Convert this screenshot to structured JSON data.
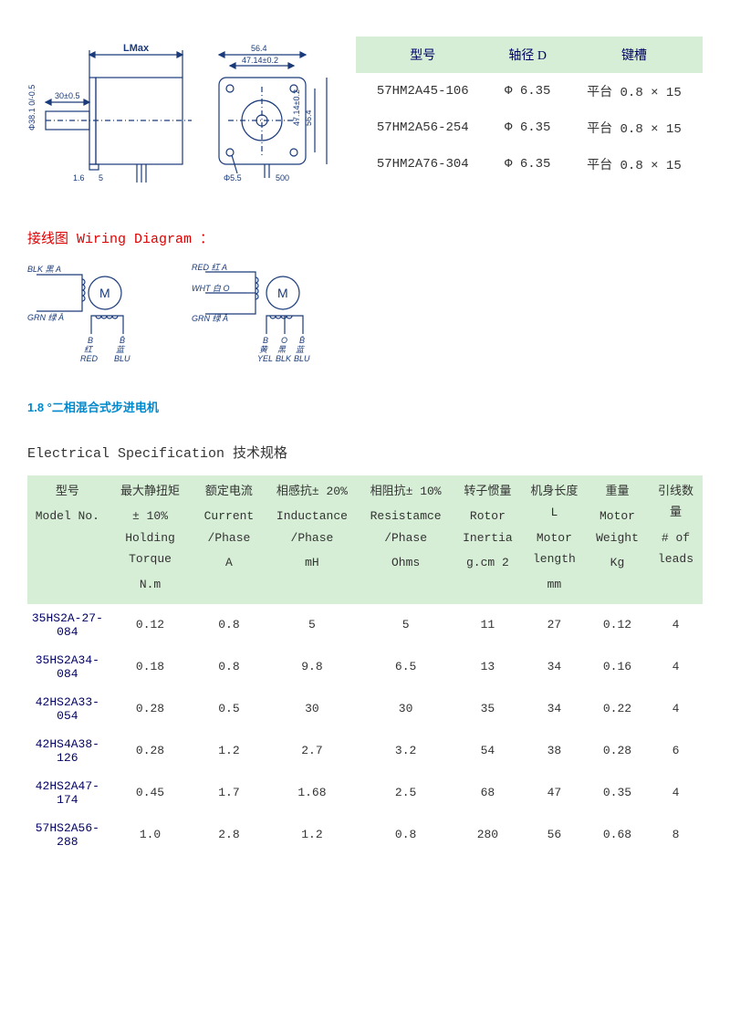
{
  "drawing": {
    "dims": {
      "lmax": "LMax",
      "shaft_len": "30±0.5",
      "shaft_dia": "Φ38.1 0/-0.5",
      "flange_thk": "5",
      "base": "1.6",
      "face_w": "56.4",
      "bolt_w": "47.14±0.2",
      "bolt_h": "47.14±0.2",
      "face_h": "56.4",
      "hole": "Φ5.5",
      "lead": "500"
    }
  },
  "small_table": {
    "headers": [
      "型号",
      "轴径 D",
      "键槽"
    ],
    "rows": [
      [
        "57HM2A45-106",
        "Φ 6.35",
        "平台 0.8 × 15"
      ],
      [
        "57HM2A56-254",
        "Φ 6.35",
        "平台 0.8 × 15"
      ],
      [
        "57HM2A76-304",
        "Φ 6.35",
        "平台 0.8 × 15"
      ]
    ]
  },
  "labels": {
    "wiring_title": "接线图 Wiring Diagram ：",
    "subtitle": "1.8 °二相混合式步进电机",
    "spec_title": "Electrical Specification 技术规格"
  },
  "wiring": {
    "left": {
      "a": "BLK 黑 A",
      "abar": "GRN 绿 Ā",
      "b": "B\n红\nRED",
      "bbar": "B̄\n蓝\nBLU"
    },
    "right": {
      "a": "RED 红 A",
      "o": "WHT 白 O",
      "abar": "GRN 绿 Ā",
      "b": "B\n黄\nYEL",
      "ob": "O\n黑\nBLK",
      "bbar": "B̄\n蓝\nBLU"
    }
  },
  "spec_table": {
    "headers": [
      {
        "cn": "型号",
        "en": "Model No.",
        "unit": ""
      },
      {
        "cn": "最大静扭矩",
        "en": "± 10% Holding Torque",
        "unit": "N.m"
      },
      {
        "cn": "额定电流",
        "en": "Current /Phase",
        "unit": "A"
      },
      {
        "cn": "相感抗± 20%",
        "en": "Inductance /Phase",
        "unit": "mH"
      },
      {
        "cn": "相阻抗± 10%",
        "en": "Resistamce /Phase",
        "unit": "Ohms"
      },
      {
        "cn": "转子惯量",
        "en": "Rotor Inertia",
        "unit": "g.cm 2"
      },
      {
        "cn": "机身长度 L",
        "en": "Motor length",
        "unit": "mm"
      },
      {
        "cn": "重量",
        "en": "Motor Weight",
        "unit": "Kg"
      },
      {
        "cn": "引线数量",
        "en": "# of leads",
        "unit": ""
      }
    ],
    "rows": [
      [
        "35HS2A-27-084",
        "0.12",
        "0.8",
        "5",
        "5",
        "11",
        "27",
        "0.12",
        "4"
      ],
      [
        "35HS2A34-084",
        "0.18",
        "0.8",
        "9.8",
        "6.5",
        "13",
        "34",
        "0.16",
        "4"
      ],
      [
        "42HS2A33-054",
        "0.28",
        "0.5",
        "30",
        "30",
        "35",
        "34",
        "0.22",
        "4"
      ],
      [
        "42HS4A38-126",
        "0.28",
        "1.2",
        "2.7",
        "3.2",
        "54",
        "38",
        "0.28",
        "6"
      ],
      [
        "42HS2A47-174",
        "0.45",
        "1.7",
        "1.68",
        "2.5",
        "68",
        "47",
        "0.35",
        "4"
      ],
      [
        "57HS2A56-288",
        "1.0",
        "2.8",
        "1.2",
        "0.8",
        "280",
        "56",
        "0.68",
        "8"
      ]
    ]
  },
  "style": {
    "header_bg": "#d5eed5",
    "red": "#d00",
    "blue": "#08c",
    "stroke": "#1a3a7a"
  }
}
